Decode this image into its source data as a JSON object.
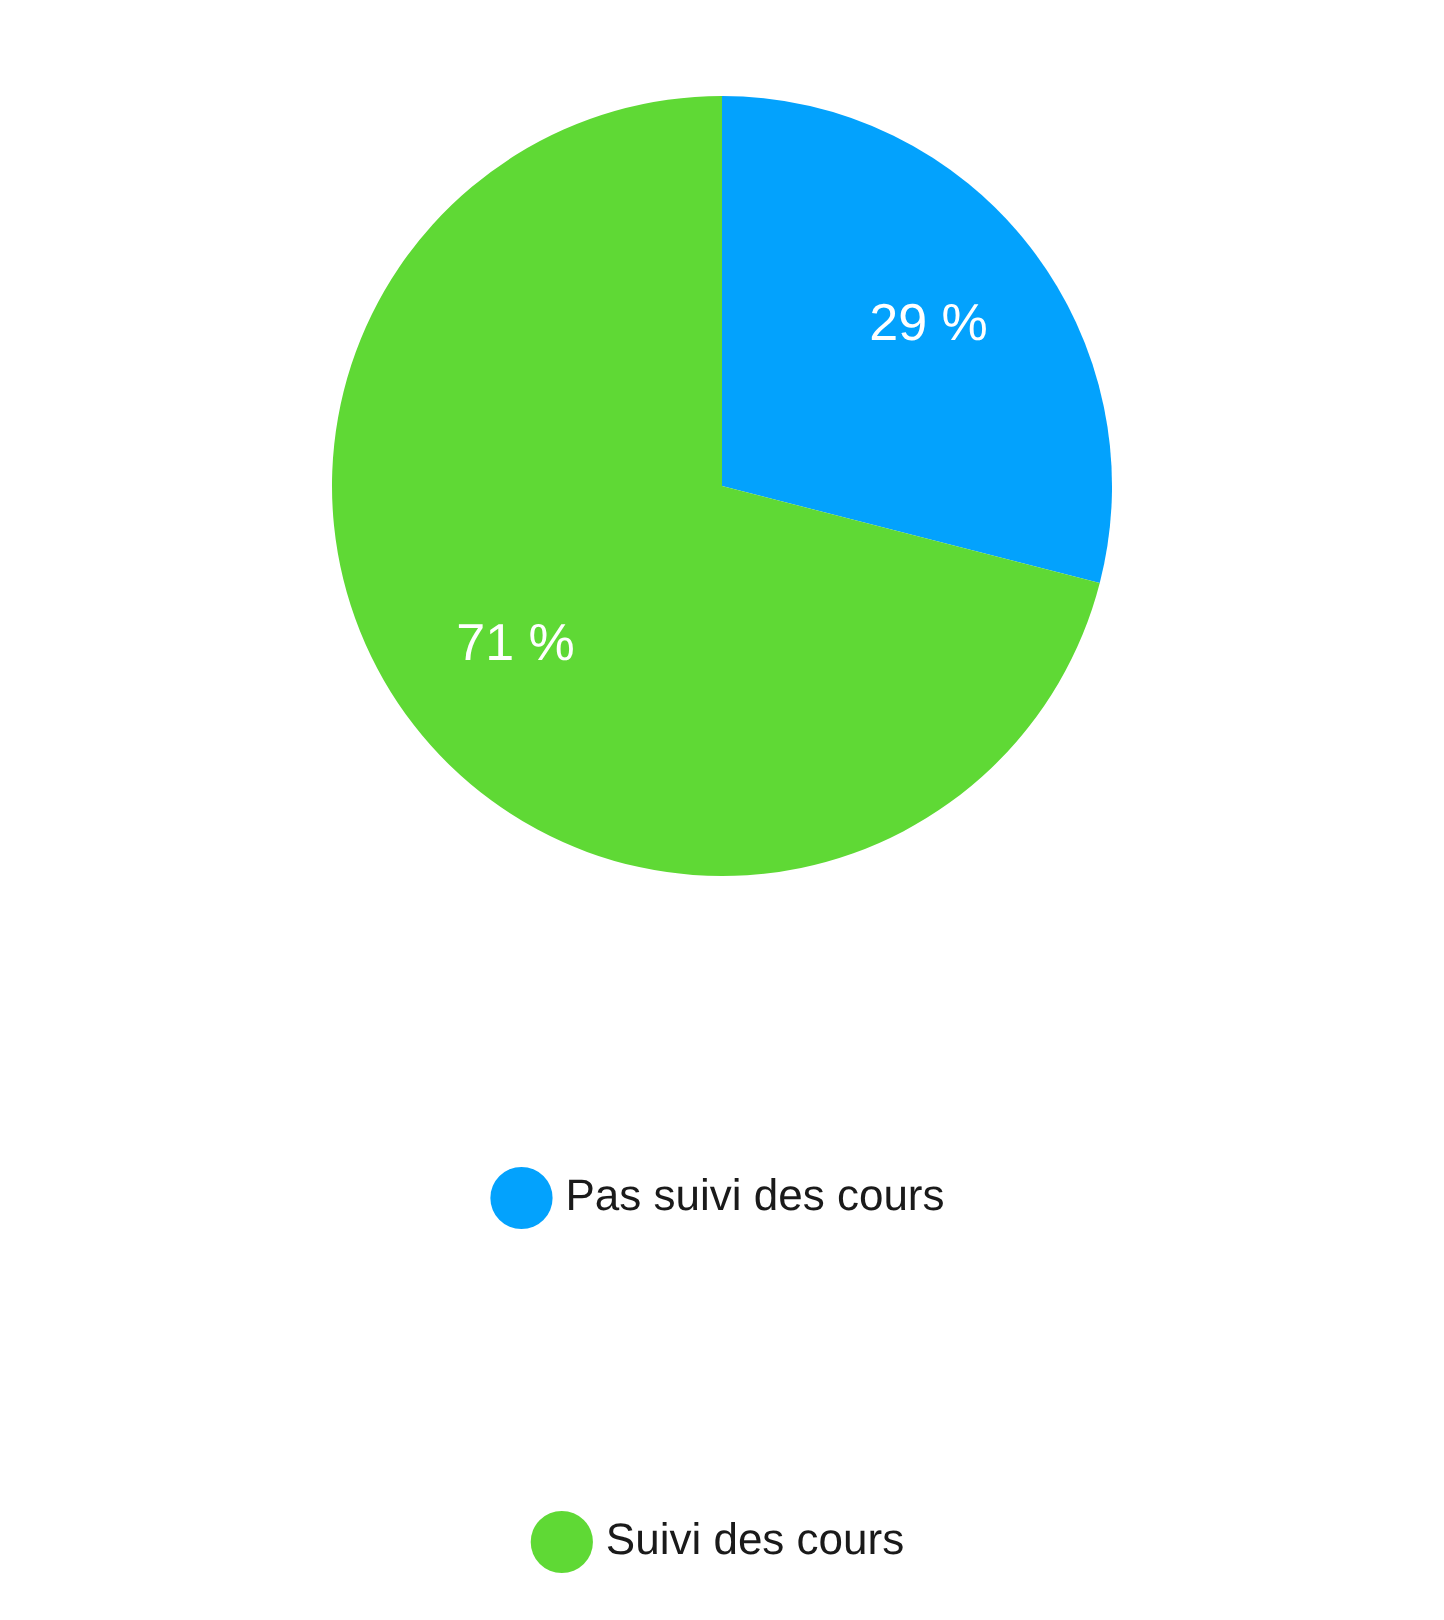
{
  "chart_data": {
    "type": "pie",
    "categories": [
      "Pas suivi des cours",
      "Suivi des cours"
    ],
    "values": [
      29,
      71
    ],
    "colors": [
      "#03a2fd",
      "#5fd935"
    ],
    "value_labels": [
      "29 %",
      "71 %"
    ],
    "legend": "bottom"
  }
}
